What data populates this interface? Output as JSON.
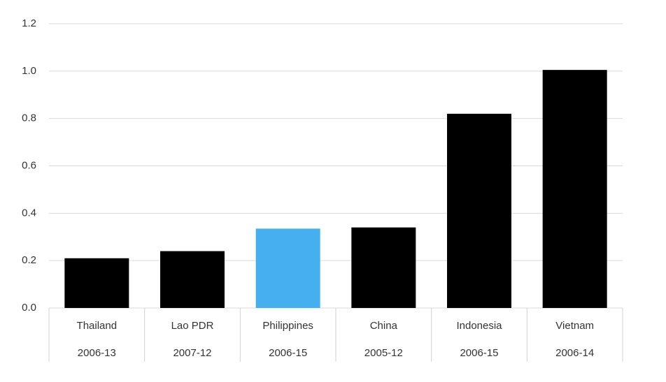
{
  "chart_data": {
    "type": "bar",
    "categories": [
      "Thailand",
      "Lao PDR",
      "Philippines",
      "China",
      "Indonesia",
      "Vietnam"
    ],
    "periods": [
      "2006-13",
      "2007-12",
      "2006-15",
      "2005-12",
      "2006-15",
      "2006-14"
    ],
    "values": [
      0.21,
      0.24,
      0.335,
      0.34,
      0.82,
      1.005
    ],
    "colors": [
      "#000000",
      "#000000",
      "#45b0ef",
      "#000000",
      "#000000",
      "#000000"
    ],
    "ylim": [
      0,
      1.2
    ],
    "yticks": [
      {
        "value": 0,
        "label": "0.0"
      },
      0.2,
      0.4,
      0.6,
      0.8,
      {
        "value": 1,
        "label": "1.0"
      },
      1.2
    ],
    "grid": true
  }
}
